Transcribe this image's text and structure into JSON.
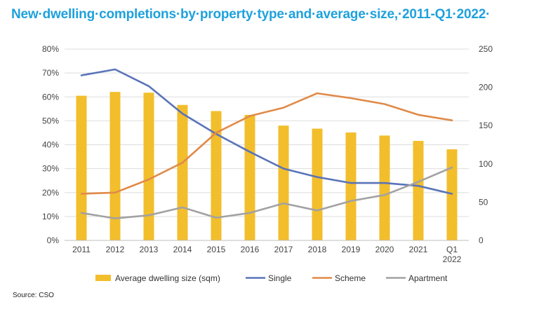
{
  "title": "New·dwelling·completions·by·property·type·and·average·size,·2011-Q1·2022·",
  "source": "Source: CSO",
  "colors": {
    "bar": "#f2be2c",
    "single": "#5a74b8",
    "scheme": "#e08a48",
    "apartment": "#a2a2a2",
    "grid": "#dedede"
  },
  "chart_data": {
    "type": "bar+line",
    "title": "New·dwelling·completions·by·property·type·and·average·size,·2011-Q1·2022·",
    "categories": [
      "2011",
      "2012",
      "2013",
      "2014",
      "2015",
      "2016",
      "2017",
      "2018",
      "2019",
      "2020",
      "2021",
      "Q1\n2022"
    ],
    "y_left": {
      "min": 0,
      "max": 80,
      "step": 10,
      "unit": "%",
      "ticks": [
        "0%",
        "10%",
        "20%",
        "30%",
        "40%",
        "50%",
        "60%",
        "70%",
        "80%"
      ]
    },
    "y_right": {
      "min": 0,
      "max": 250,
      "step": 50,
      "ticks": [
        "0",
        "50",
        "100",
        "150",
        "200",
        "250"
      ]
    },
    "grid": true,
    "legend_position": "bottom",
    "series": [
      {
        "name": "Average dwelling size (sqm)",
        "kind": "bar",
        "axis": "right",
        "values": [
          189,
          194,
          193,
          177,
          169,
          164,
          150,
          146,
          141,
          137,
          130,
          119
        ]
      },
      {
        "name": "Single",
        "kind": "line",
        "axis": "left",
        "values": [
          69,
          71.5,
          64.5,
          53,
          44.5,
          37,
          30,
          26.5,
          24,
          24,
          22.8,
          19.5
        ]
      },
      {
        "name": "Scheme",
        "kind": "line",
        "axis": "left",
        "values": [
          19.5,
          20,
          25.5,
          32.5,
          45,
          52,
          55.5,
          61.5,
          59.5,
          57,
          52.5,
          50.2
        ]
      },
      {
        "name": "Apartment",
        "kind": "line",
        "axis": "left",
        "values": [
          11.5,
          9.2,
          10.5,
          13.8,
          9.5,
          11.5,
          15.5,
          12.5,
          16.5,
          19,
          24.5,
          30.5
        ]
      }
    ]
  }
}
